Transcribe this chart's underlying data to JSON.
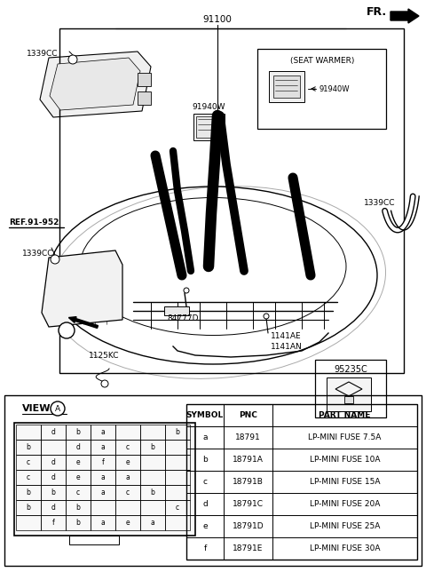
{
  "bg_color": "#ffffff",
  "fig_w": 4.8,
  "fig_h": 6.44,
  "dpi": 100,
  "table_headers": [
    "SYMBOL",
    "PNC",
    "PART NAME"
  ],
  "table_rows": [
    [
      "a",
      "18791",
      "LP-MINI FUSE 7.5A"
    ],
    [
      "b",
      "18791A",
      "LP-MINI FUSE 10A"
    ],
    [
      "c",
      "18791B",
      "LP-MINI FUSE 15A"
    ],
    [
      "d",
      "18791C",
      "LP-MINI FUSE 20A"
    ],
    [
      "e",
      "18791D",
      "LP-MINI FUSE 25A"
    ],
    [
      "f",
      "18791E",
      "LP-MINI FUSE 30A"
    ]
  ],
  "fuse_grid": [
    [
      "",
      "d",
      "b",
      "a",
      "",
      "",
      "b"
    ],
    [
      "b",
      "",
      "d",
      "a",
      "c",
      "b",
      ""
    ],
    [
      "c",
      "d",
      "e",
      "f",
      "e",
      "",
      ""
    ],
    [
      "c",
      "d",
      "e",
      "a",
      "a",
      "",
      ""
    ],
    [
      "b",
      "b",
      "c",
      "a",
      "c",
      "b",
      ""
    ],
    [
      "b",
      "d",
      "b",
      "",
      "",
      "",
      "c"
    ],
    [
      "",
      "f",
      "b",
      "a",
      "e",
      "a",
      ""
    ]
  ]
}
